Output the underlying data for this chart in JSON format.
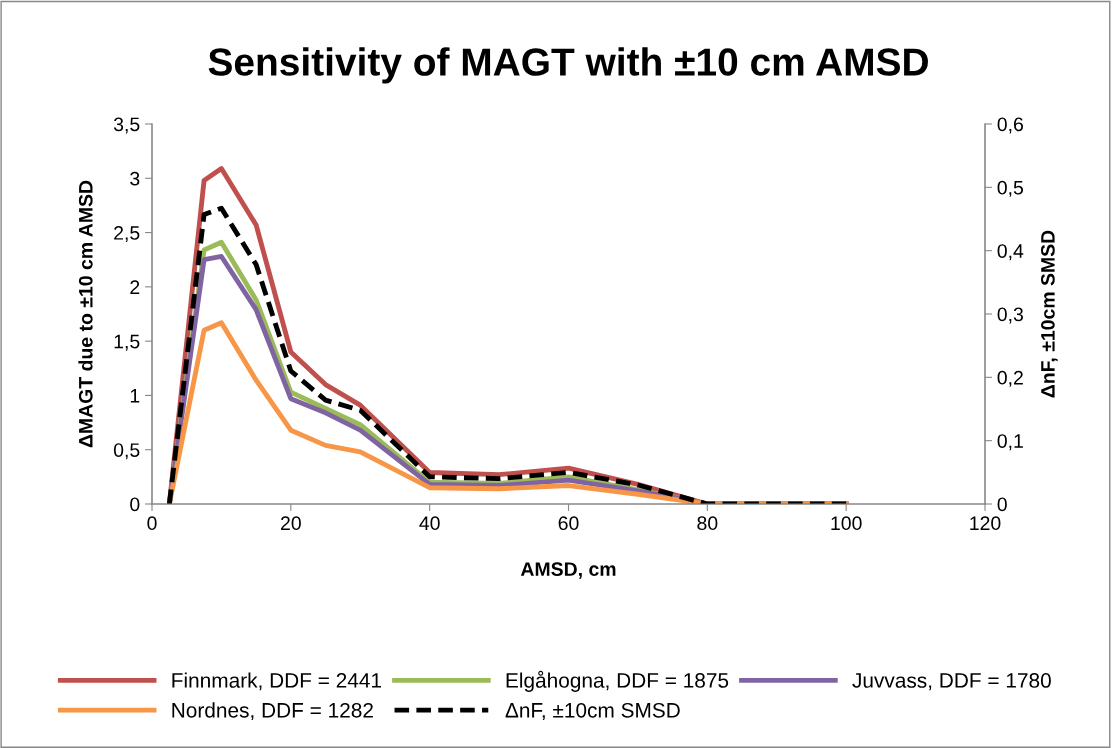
{
  "chart_data": {
    "type": "line",
    "title": "Sensitivity of MAGT with ±10 cm AMSD",
    "xlabel": "AMSD, cm",
    "ylabel": "ΔMAGT due to ±10 cm AMSD",
    "y2label": "ΔnF, ±10cm SMSD",
    "x": [
      2.5,
      7.5,
      10,
      15,
      20,
      25,
      30,
      40,
      50,
      60,
      70,
      80,
      90,
      100
    ],
    "series": [
      {
        "name": "Finnmark, DDF = 2441",
        "color": "#c0504d",
        "values": [
          0,
          2.98,
          3.09,
          2.57,
          1.4,
          1.1,
          0.91,
          0.29,
          0.27,
          0.33,
          0.18,
          0,
          0,
          0
        ]
      },
      {
        "name": "Elgåhogna, DDF = 1875",
        "color": "#9bbb59",
        "values": [
          0,
          2.34,
          2.41,
          1.88,
          1.03,
          0.88,
          0.73,
          0.2,
          0.19,
          0.25,
          0.13,
          0,
          null,
          null
        ]
      },
      {
        "name": "Juvvass, DDF = 1780",
        "color": "#8064a2",
        "values": [
          0,
          2.25,
          2.28,
          1.79,
          0.97,
          0.84,
          0.68,
          0.18,
          0.17,
          0.22,
          0.12,
          0,
          0,
          0
        ]
      },
      {
        "name": "Nordnes, DDF = 1282",
        "color": "#f79646",
        "values": [
          0,
          1.6,
          1.67,
          1.14,
          0.68,
          0.54,
          0.48,
          0.15,
          0.14,
          0.17,
          0.09,
          0,
          0,
          0
        ]
      },
      {
        "name": "ΔnF, ±10cm SMSD",
        "color": "#000000",
        "axis": "y2",
        "line_style": "dashed",
        "values": [
          0,
          0.457,
          0.467,
          0.378,
          0.21,
          0.164,
          0.148,
          0.043,
          0.04,
          0.05,
          0.03,
          0,
          0,
          0
        ]
      }
    ],
    "xlim": [
      0,
      120
    ],
    "xticks": [
      0,
      20,
      40,
      60,
      80,
      100,
      120
    ],
    "ylim": [
      0,
      3.5
    ],
    "yticks": [
      0,
      {
        "value": 0.5,
        "label": "0,5"
      },
      1,
      {
        "value": 1.5,
        "label": "1,5"
      },
      2,
      {
        "value": 2.5,
        "label": "2,5"
      },
      3,
      {
        "value": 3.5,
        "label": "3,5"
      }
    ],
    "y2lim": [
      0,
      0.6
    ],
    "y2ticks": [
      0,
      {
        "value": 0.1,
        "label": "0,1"
      },
      {
        "value": 0.2,
        "label": "0,2"
      },
      {
        "value": 0.3,
        "label": "0,3"
      },
      {
        "value": 0.4,
        "label": "0,4"
      },
      {
        "value": 0.5,
        "label": "0,5"
      },
      {
        "value": 0.6,
        "label": "0,6"
      }
    ],
    "grid": false,
    "legend": "bottom",
    "marker": "none"
  }
}
